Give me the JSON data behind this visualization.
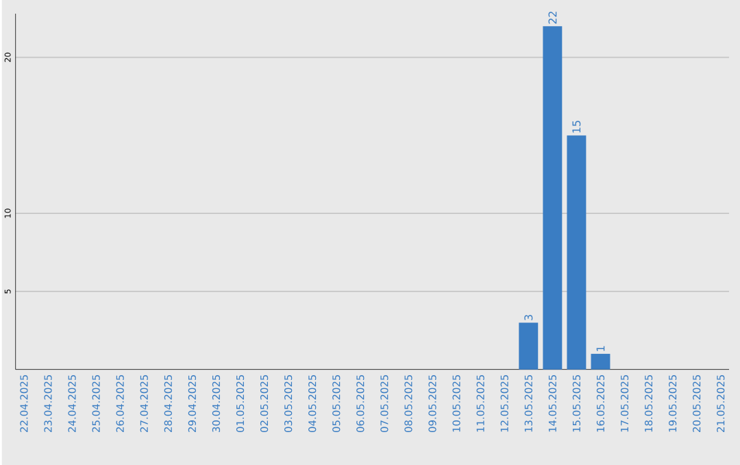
{
  "chart_data": {
    "type": "bar",
    "categories": [
      "22.04.2025",
      "23.04.2025",
      "24.04.2025",
      "25.04.2025",
      "26.04.2025",
      "27.04.2025",
      "28.04.2025",
      "29.04.2025",
      "30.04.2025",
      "01.05.2025",
      "02.05.2025",
      "03.05.2025",
      "04.05.2025",
      "05.05.2025",
      "06.05.2025",
      "07.05.2025",
      "08.05.2025",
      "09.05.2025",
      "10.05.2025",
      "11.05.2025",
      "12.05.2025",
      "13.05.2025",
      "14.05.2025",
      "15.05.2025",
      "16.05.2025",
      "17.05.2025",
      "18.05.2025",
      "19.05.2025",
      "20.05.2025",
      "21.05.2025"
    ],
    "values": [
      0,
      0,
      0,
      0,
      0,
      0,
      0,
      0,
      0,
      0,
      0,
      0,
      0,
      0,
      0,
      0,
      0,
      0,
      0,
      0,
      0,
      3,
      22,
      15,
      1,
      0,
      0,
      0,
      0,
      0
    ],
    "value_labels": [
      null,
      null,
      null,
      null,
      null,
      null,
      null,
      null,
      null,
      null,
      null,
      null,
      null,
      null,
      null,
      null,
      null,
      null,
      null,
      null,
      null,
      "3",
      "22",
      "15",
      "1",
      null,
      null,
      null,
      null,
      null
    ],
    "color": "#3a7dc3",
    "ylim": [
      0,
      22.8
    ],
    "yticks": [
      5,
      10,
      20
    ],
    "grid": "y"
  }
}
